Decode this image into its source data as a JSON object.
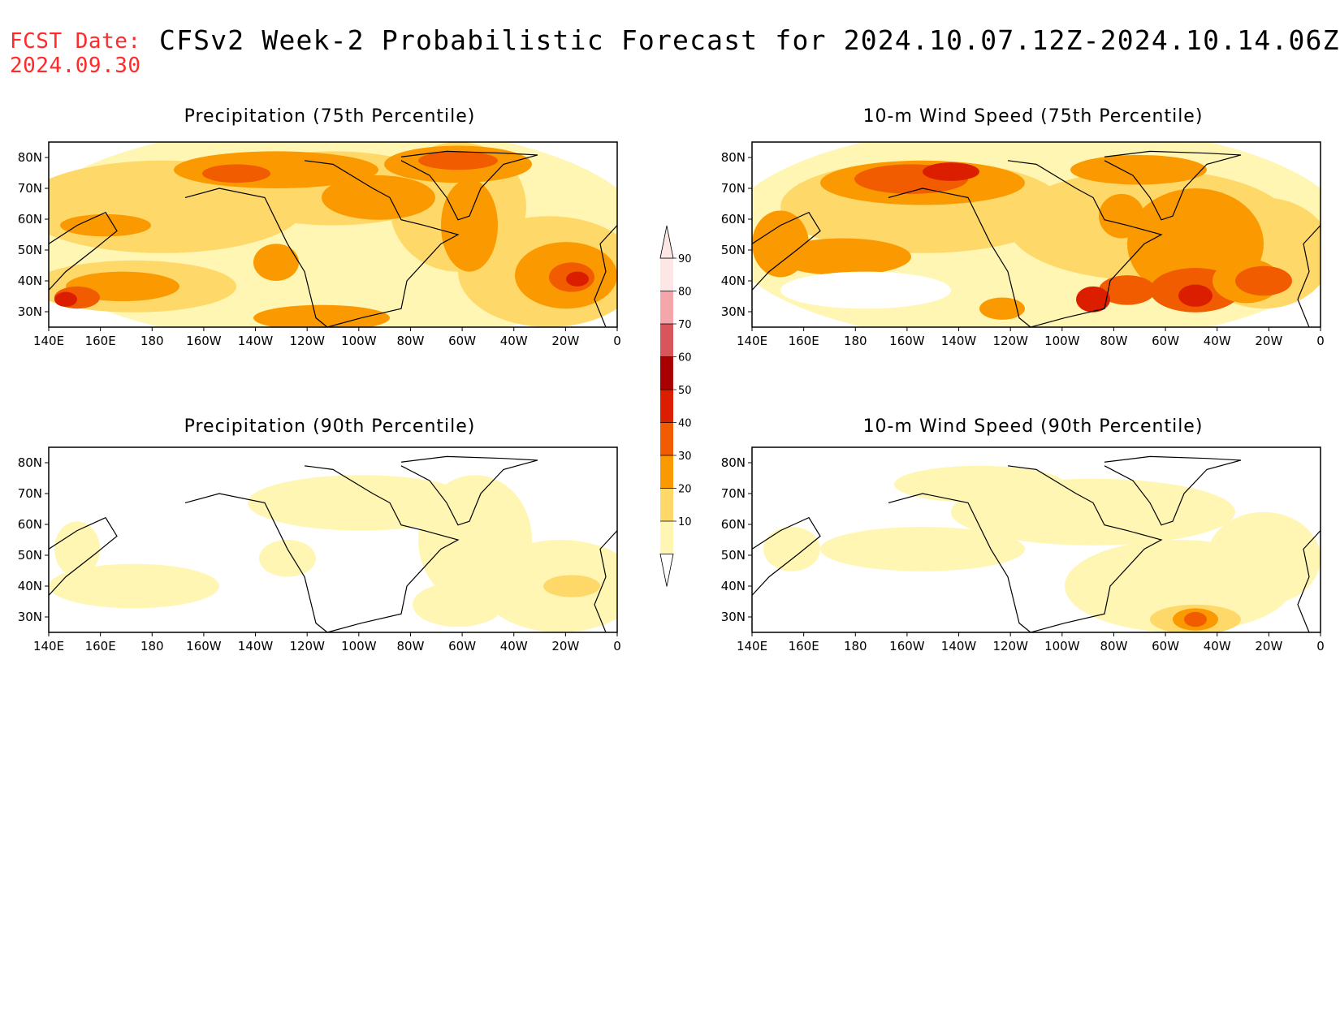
{
  "header": {
    "fcst_label": "FCST Date:",
    "fcst_value": "2024.09.30",
    "title": "CFSv2 Week-2 Probabilistic Forecast for 2024.10.07.12Z-2024.10.14.06Z"
  },
  "axes": {
    "lon_labels": [
      "140E",
      "160E",
      "180",
      "160W",
      "140W",
      "120W",
      "100W",
      "80W",
      "60W",
      "40W",
      "20W",
      "0"
    ],
    "lat_labels": [
      "80N",
      "70N",
      "60N",
      "50N",
      "40N",
      "30N"
    ]
  },
  "colorbar": {
    "labels": [
      "90",
      "80",
      "70",
      "60",
      "50",
      "40",
      "30",
      "20",
      "10"
    ],
    "colors": [
      "#fde6e6",
      "#f4a6ab",
      "#d9555c",
      "#a80000",
      "#dc1e00",
      "#f25c00",
      "#fb9a00",
      "#fed96a",
      "#fff6b4"
    ]
  },
  "panels": [
    {
      "id": "precip75",
      "title": "Precipitation (75th Percentile)"
    },
    {
      "id": "wind75",
      "title": "10-m Wind Speed (75th Percentile)"
    },
    {
      "id": "precip90",
      "title": "Precipitation (90th Percentile)"
    },
    {
      "id": "wind90",
      "title": "10-m Wind Speed (90th Percentile)"
    }
  ]
}
